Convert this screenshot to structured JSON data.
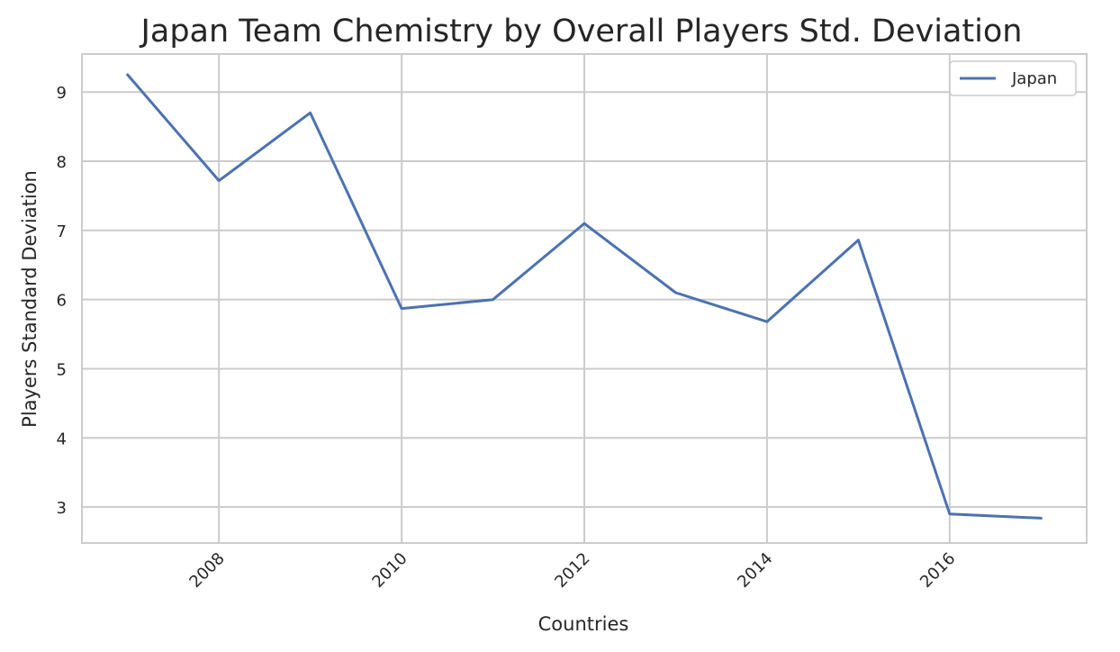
{
  "chart_data": {
    "type": "line",
    "title": "Japan Team Chemistry by Overall Players Std. Deviation",
    "xlabel": "Countries",
    "ylabel": "Players Standard Deviation",
    "x": [
      2007,
      2008,
      2009,
      2010,
      2011,
      2012,
      2013,
      2014,
      2015,
      2016,
      2017
    ],
    "series": [
      {
        "name": "Japan",
        "values": [
          9.25,
          7.72,
          8.7,
          5.87,
          6.0,
          7.1,
          6.1,
          5.68,
          6.86,
          2.9,
          2.84
        ],
        "color": "#4c72b0"
      }
    ],
    "xlim": [
      2006.5,
      2017.5
    ],
    "ylim": [
      2.48,
      9.55
    ],
    "xticks": [
      2008,
      2010,
      2012,
      2014,
      2016
    ],
    "xtick_labels": [
      "2008",
      "2010",
      "2012",
      "2014",
      "2016"
    ],
    "yticks": [
      3,
      4,
      5,
      6,
      7,
      8,
      9
    ],
    "ytick_labels": [
      "3",
      "4",
      "5",
      "6",
      "7",
      "8",
      "9"
    ],
    "xtick_rotation_deg": 45,
    "grid": true,
    "legend_position": "top-right",
    "colors": {
      "grid": "#cccccc",
      "frame": "#cccccc",
      "text": "#262626"
    }
  }
}
